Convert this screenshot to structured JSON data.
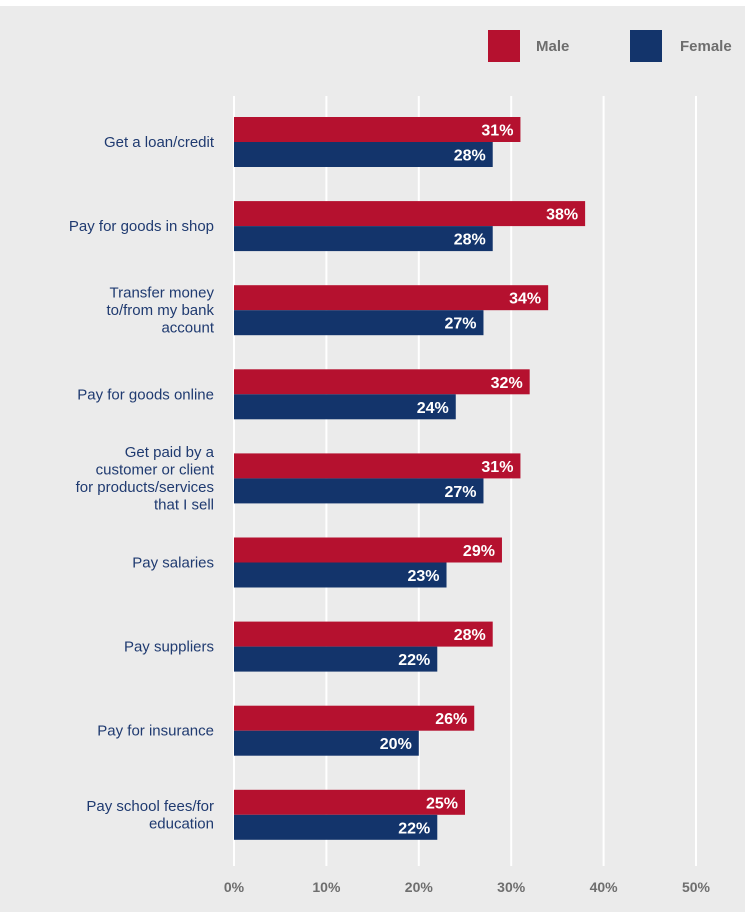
{
  "chart_data": {
    "type": "bar",
    "orientation": "horizontal",
    "title": "",
    "xlabel": "",
    "ylabel": "",
    "xlim": [
      0,
      50
    ],
    "ticks": [
      "0%",
      "10%",
      "20%",
      "30%",
      "40%",
      "50%"
    ],
    "tick_values": [
      0,
      10,
      20,
      30,
      40,
      50
    ],
    "grid": true,
    "legend_position": "top-right",
    "categories": [
      [
        "Get a loan/credit"
      ],
      [
        "Pay for goods in shop"
      ],
      [
        "Transfer money",
        "to/from my bank",
        "account"
      ],
      [
        "Pay for goods online"
      ],
      [
        "Get paid by a",
        "customer or client",
        "for products/services",
        "that I sell"
      ],
      [
        "Pay salaries"
      ],
      [
        "Pay suppliers"
      ],
      [
        "Pay for insurance"
      ],
      [
        "Pay school fees/for",
        "education"
      ]
    ],
    "series": [
      {
        "name": "Male",
        "color": "#b5112f",
        "values": [
          31,
          38,
          34,
          32,
          31,
          29,
          28,
          26,
          25
        ],
        "labels": [
          "31%",
          "38%",
          "34%",
          "32%",
          "31%",
          "29%",
          "28%",
          "26%",
          "25%"
        ]
      },
      {
        "name": "Female",
        "color": "#13346b",
        "values": [
          28,
          28,
          27,
          24,
          27,
          23,
          22,
          20,
          22
        ],
        "labels": [
          "28%",
          "28%",
          "27%",
          "24%",
          "27%",
          "23%",
          "22%",
          "20%",
          "22%"
        ]
      }
    ]
  },
  "colors": {
    "background": "#ebebeb",
    "gridline": "#ffffff",
    "category_text": "#1f3a70",
    "axis_text": "#6e6e6e"
  }
}
